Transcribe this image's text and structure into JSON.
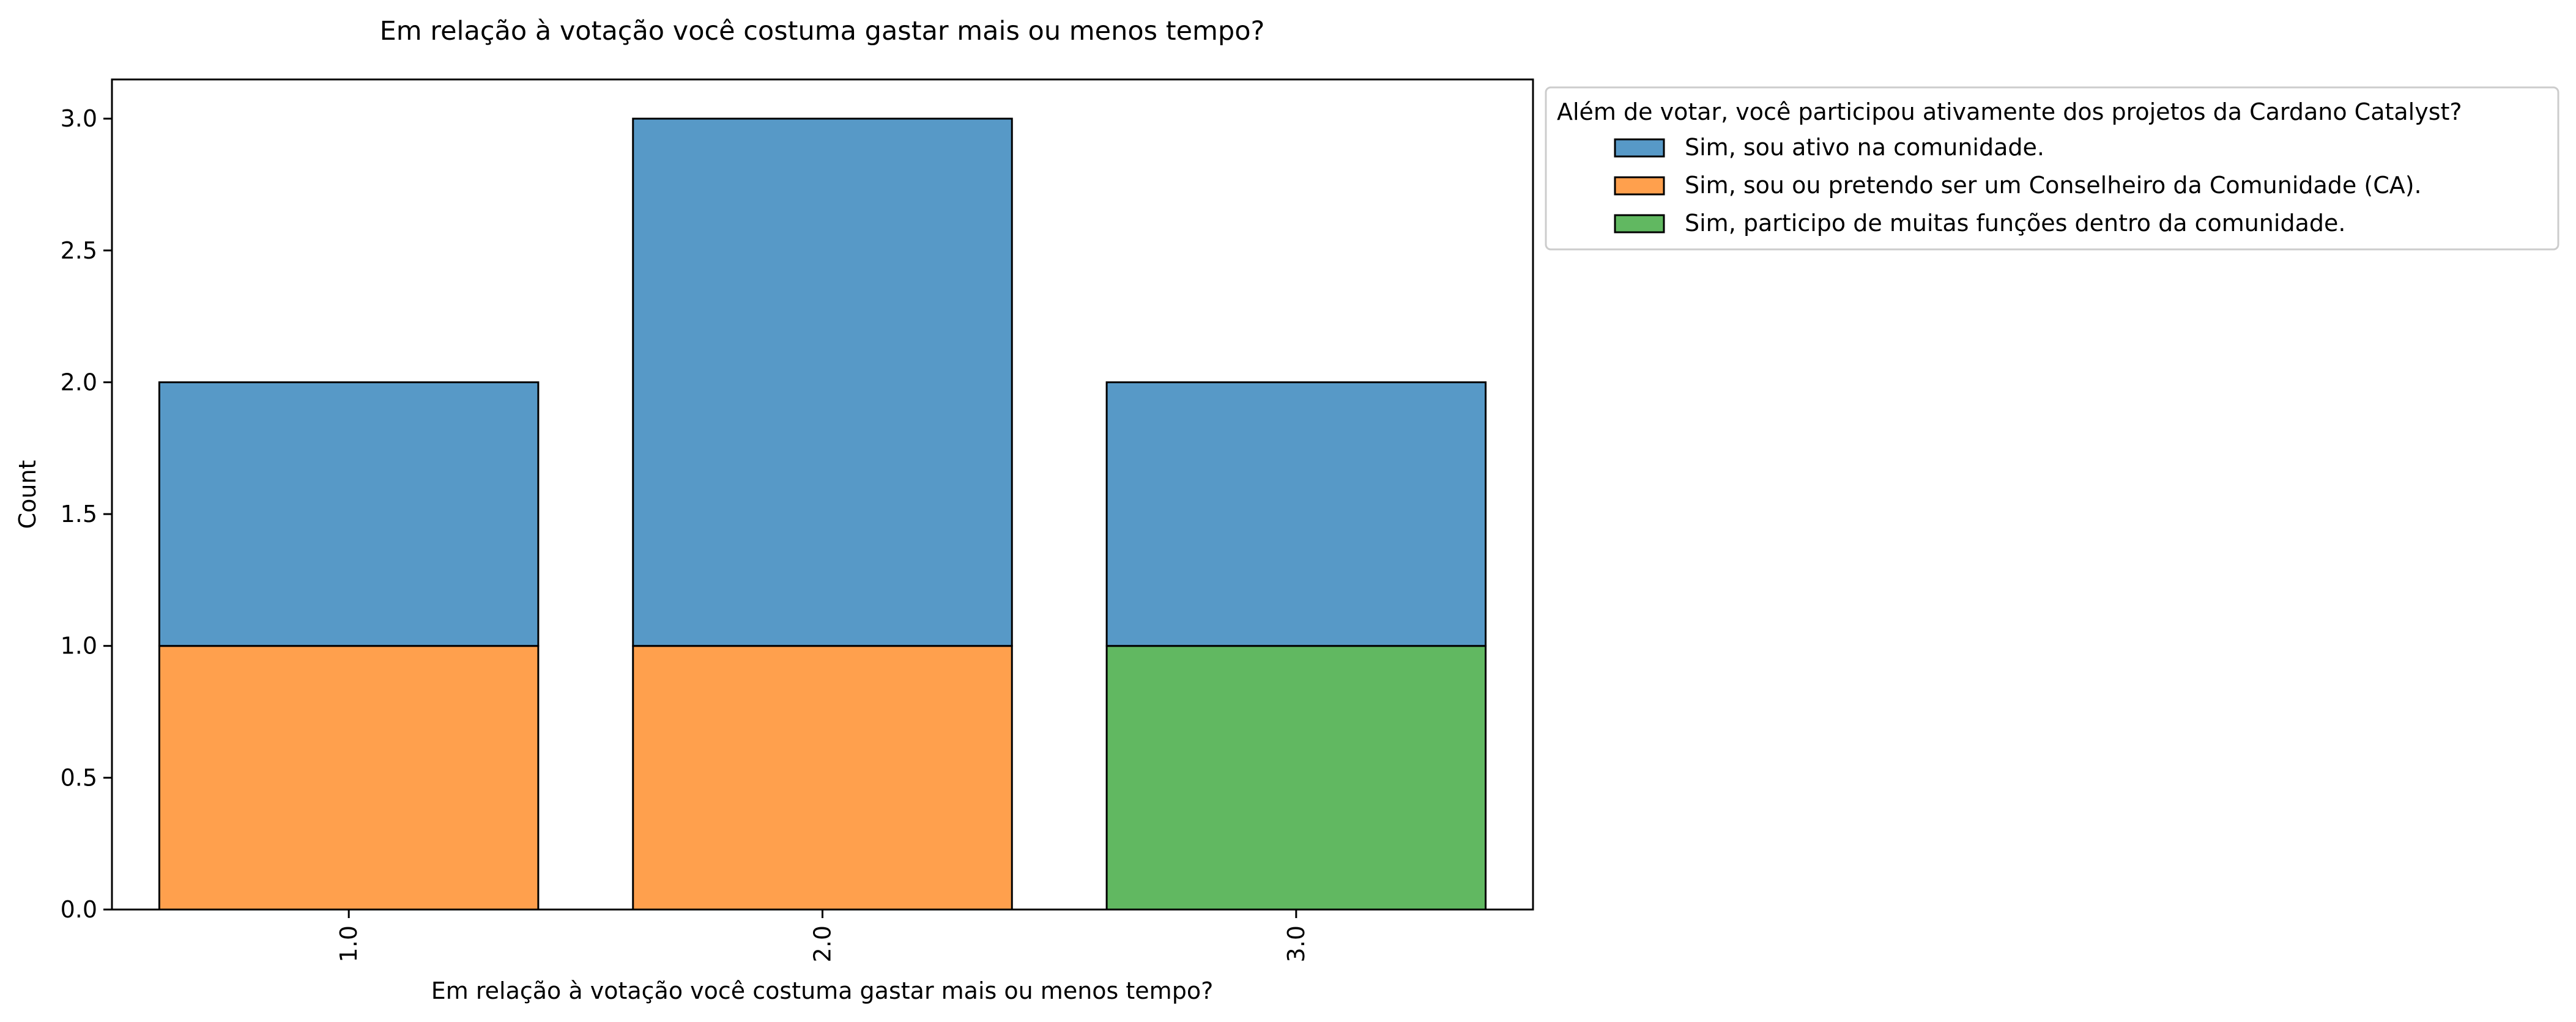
{
  "chart_data": {
    "type": "bar",
    "stacked": true,
    "title": "Em relação à votação você costuma gastar mais ou menos tempo?",
    "xlabel": "Em relação à votação você costuma gastar mais ou menos tempo?",
    "ylabel": "Count",
    "categories": [
      "1.0",
      "2.0",
      "3.0"
    ],
    "yticks": [
      "0.0",
      "0.5",
      "1.0",
      "1.5",
      "2.0",
      "2.5",
      "3.0"
    ],
    "ylim": [
      0,
      3.15
    ],
    "grid": false,
    "legend_position": "outside-top-right",
    "legend_title": "Além de votar, você participou ativamente dos projetos da Cardano Catalyst?",
    "series": [
      {
        "name": "Sim, sou ativo na comunidade.",
        "color": "#5799c7",
        "values": [
          1,
          2,
          1
        ]
      },
      {
        "name": "Sim, sou ou pretendo ser um Conselheiro da Comunidade (CA).",
        "color": "#ffa04d",
        "values": [
          1,
          1,
          0
        ]
      },
      {
        "name": "Sim, participo de muitas funções dentro da comunidade.",
        "color": "#61b861",
        "values": [
          0,
          0,
          1
        ]
      }
    ],
    "stack_order": [
      1,
      2,
      0
    ]
  }
}
